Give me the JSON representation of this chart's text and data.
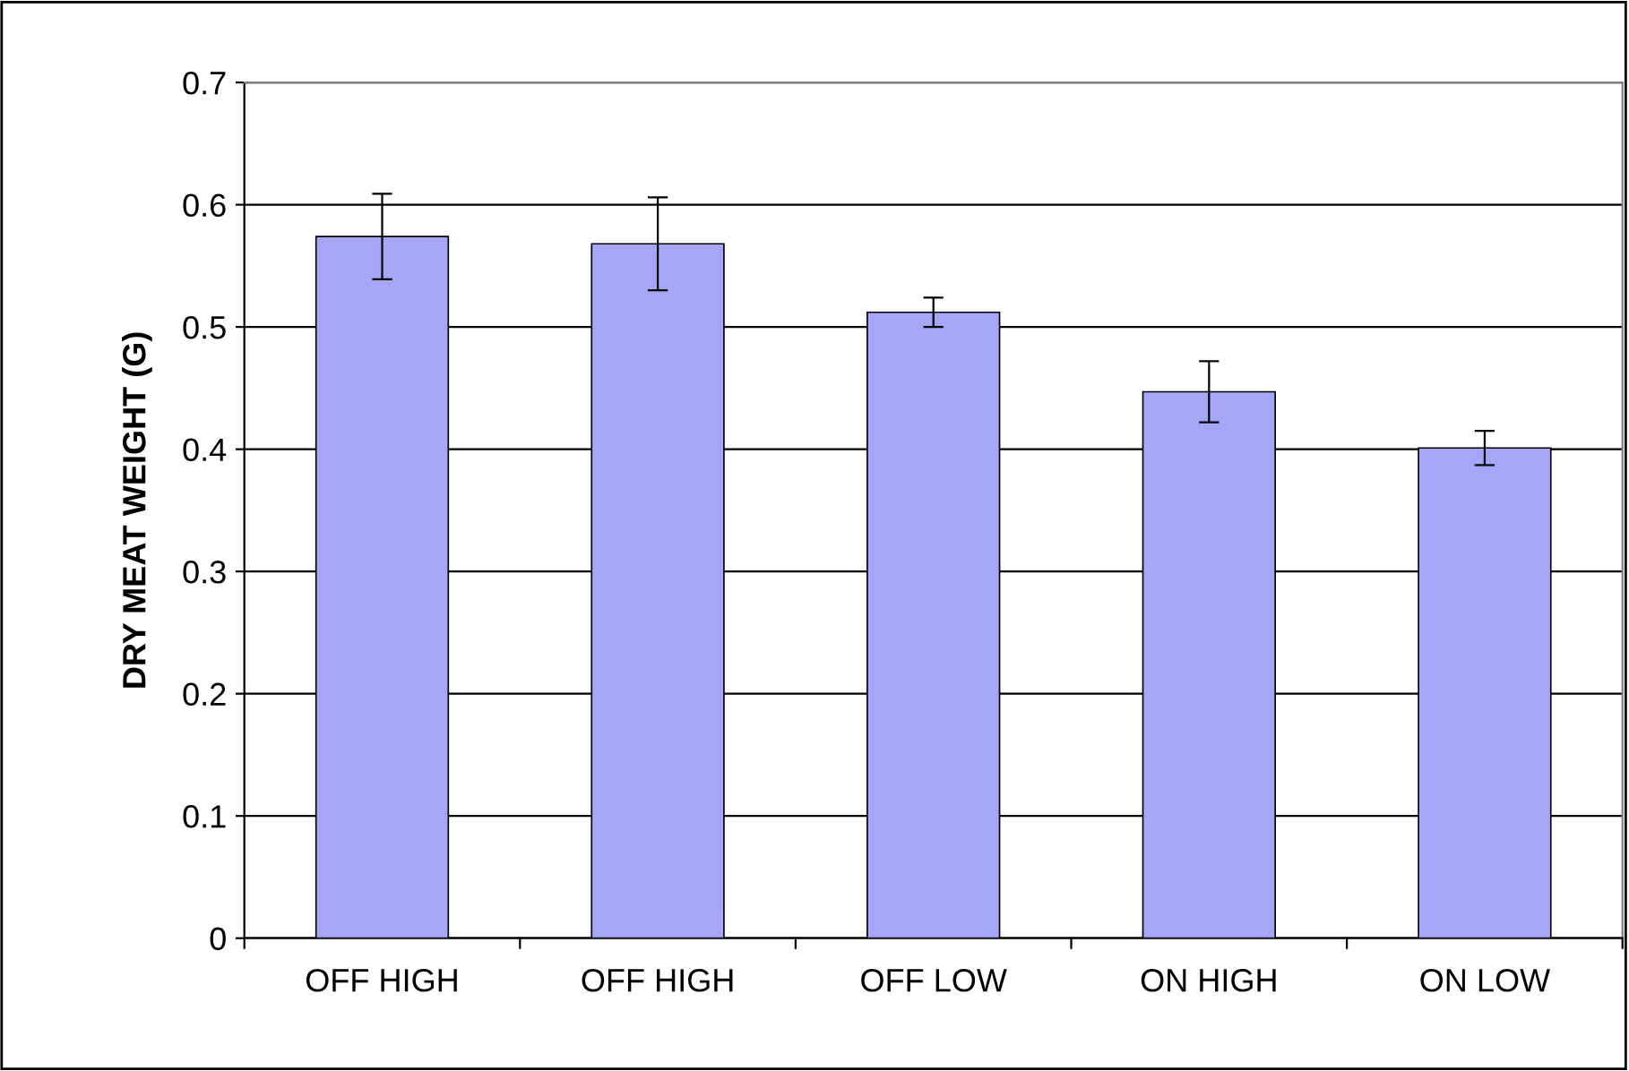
{
  "chart_data": {
    "type": "bar",
    "ylabel": "DRY MEAT WEIGHT (G)",
    "categories": [
      "OFF HIGH",
      "OFF HIGH",
      "OFF LOW",
      "ON HIGH",
      "ON LOW"
    ],
    "values": [
      0.574,
      0.568,
      0.512,
      0.447,
      0.401
    ],
    "errors": [
      0.035,
      0.038,
      0.012,
      0.025,
      0.014
    ],
    "color": "#a6a6f7",
    "ylim": [
      0,
      0.7
    ],
    "yticks": [
      {
        "value": 0,
        "label": "0"
      },
      0.1,
      0.2,
      0.3,
      0.4,
      0.5,
      0.6,
      0.7
    ],
    "grid": "y",
    "legend": false
  }
}
